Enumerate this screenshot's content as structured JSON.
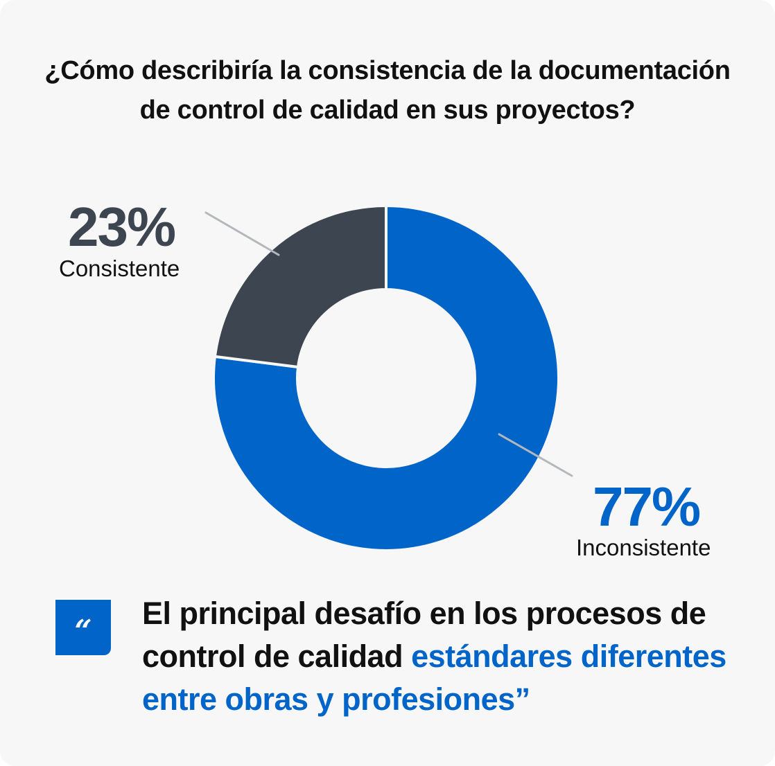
{
  "chart_data": {
    "type": "pie",
    "variant": "donut",
    "title": "¿Cómo describiría la consistencia de la documentación de control de calidad en sus proyectos?",
    "slices": [
      {
        "label": "Inconsistente",
        "value": 77,
        "display": "77%",
        "color": "#0064C8"
      },
      {
        "label": "Consistente",
        "value": 23,
        "display": "23%",
        "color": "#3D4650"
      }
    ]
  },
  "quote": {
    "icon": "quote-open-icon",
    "icon_glyph": "“",
    "text": "El principal desafío en los procesos de control de calidad ",
    "highlight": "estándares diferentes entre obras y profesiones”",
    "highlight_color": "#0064C8"
  },
  "colors": {
    "background": "#F7F7F7",
    "leader_line": "#B4B8BD"
  }
}
